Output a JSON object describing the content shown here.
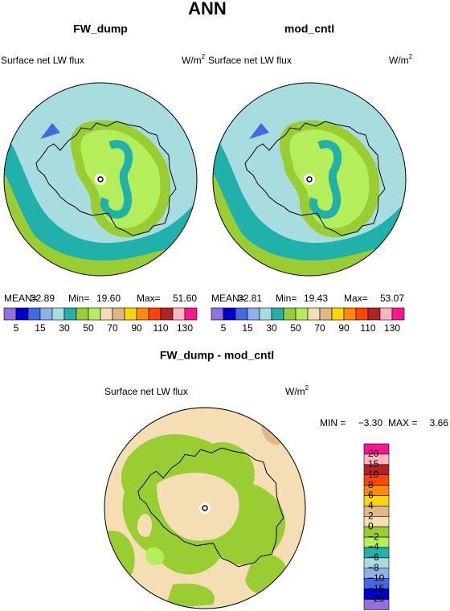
{
  "title": "ANN",
  "panels": [
    {
      "title": "FW_dump",
      "variable": "Surface net LW flux",
      "units": "W/m",
      "units_sup": "2",
      "stats": {
        "mean_label": "MEAN=",
        "mean": "32.89",
        "min_label": "Min=",
        "min": "19.60",
        "max_label": "Max=",
        "max": "51.60"
      }
    },
    {
      "title": "mod_cntl",
      "variable": "Surface net LW flux",
      "units": "W/m",
      "units_sup": "2",
      "stats": {
        "mean_label": "MEAN=",
        "mean": "32.81",
        "min_label": "Min=",
        "min": "19.43",
        "max_label": "Max=",
        "max": "53.07"
      }
    }
  ],
  "colorbar": {
    "labels": [
      "5",
      "15",
      "30",
      "50",
      "70",
      "90",
      "110",
      "130"
    ],
    "colors": [
      "#9370db",
      "#0000cd",
      "#4169e1",
      "#8fb0e8",
      "#a8dde0",
      "#20b2aa",
      "#9acd32",
      "#b4ee5a",
      "#f5deb3",
      "#deb887",
      "#ffd700",
      "#ff8c00",
      "#ff4500",
      "#b22222",
      "#ffb6c1",
      "#ff1493"
    ]
  },
  "difference": {
    "title": "FW_dump - mod_cntl",
    "variable": "Surface net LW flux",
    "units": "W/m",
    "units_sup": "2",
    "stats": {
      "min_label": "MIN =",
      "min": "−3.30",
      "max_label": "MAX =",
      "max": "3.66"
    },
    "colorbar": {
      "labels": [
        "20",
        "15",
        "10",
        "8",
        "6",
        "4",
        "2",
        "0",
        "−2",
        "−4",
        "−6",
        "−8",
        "−10",
        "−15",
        "−20"
      ],
      "colors": [
        "#ff1493",
        "#ffb6c1",
        "#b22222",
        "#ff4500",
        "#ff8c00",
        "#ffd700",
        "#deb887",
        "#f5deb3",
        "#9acd32",
        "#b4ee5a",
        "#20b2aa",
        "#a8dde0",
        "#8fb0e8",
        "#4169e1",
        "#0000cd",
        "#9370db"
      ]
    }
  }
}
